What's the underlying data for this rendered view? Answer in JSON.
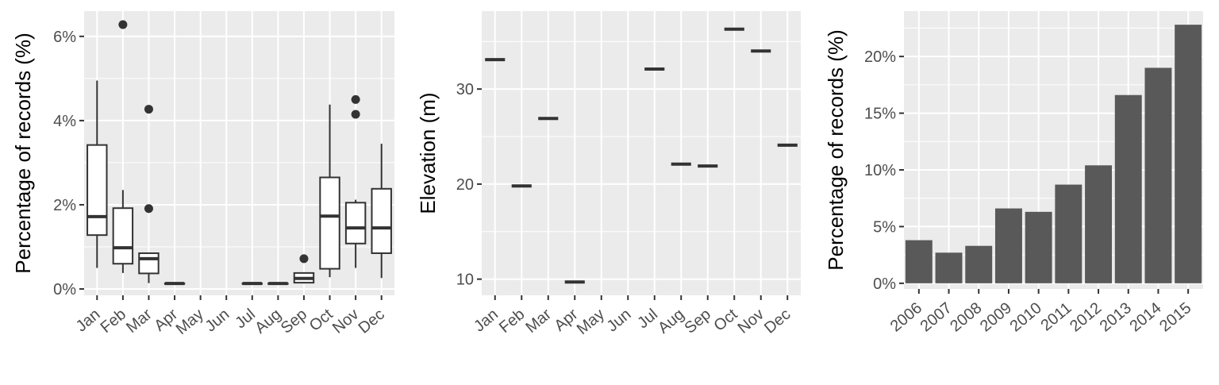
{
  "chart_data": [
    {
      "type": "boxplot",
      "xlabel": "",
      "ylabel": "Percentage of records (%)",
      "categories": [
        "Jan",
        "Feb",
        "Mar",
        "Apr",
        "May",
        "Jun",
        "Jul",
        "Aug",
        "Sep",
        "Oct",
        "Nov",
        "Dec"
      ],
      "y_ticks": [
        0,
        2,
        4,
        6
      ],
      "y_tick_labels": [
        "0%",
        "2%",
        "4%",
        "6%"
      ],
      "ylim": [
        -0.15,
        6.6
      ],
      "grid": true,
      "boxes": [
        {
          "category": "Jan",
          "min": 0.5,
          "q1": 1.28,
          "median": 1.72,
          "q3": 3.42,
          "max": 4.95,
          "outliers": []
        },
        {
          "category": "Feb",
          "min": 0.38,
          "q1": 0.6,
          "median": 0.98,
          "q3": 1.92,
          "max": 2.35,
          "outliers": [
            6.28
          ]
        },
        {
          "category": "Mar",
          "min": 0.14,
          "q1": 0.37,
          "median": 0.72,
          "q3": 0.85,
          "max": 0.85,
          "outliers": [
            4.27,
            1.91
          ]
        },
        {
          "category": "Apr",
          "min": 0.13,
          "q1": 0.13,
          "median": 0.13,
          "q3": 0.13,
          "max": 0.13,
          "outliers": []
        },
        {
          "category": "May",
          "min": null,
          "q1": null,
          "median": null,
          "q3": null,
          "max": null,
          "outliers": []
        },
        {
          "category": "Jun",
          "min": null,
          "q1": null,
          "median": null,
          "q3": null,
          "max": null,
          "outliers": []
        },
        {
          "category": "Jul",
          "min": 0.13,
          "q1": 0.13,
          "median": 0.13,
          "q3": 0.13,
          "max": 0.13,
          "outliers": []
        },
        {
          "category": "Aug",
          "min": 0.13,
          "q1": 0.13,
          "median": 0.13,
          "q3": 0.13,
          "max": 0.13,
          "outliers": []
        },
        {
          "category": "Sep",
          "min": 0.13,
          "q1": 0.15,
          "median": 0.25,
          "q3": 0.38,
          "max": 0.38,
          "outliers": [
            0.72
          ]
        },
        {
          "category": "Oct",
          "min": 0.28,
          "q1": 0.48,
          "median": 1.73,
          "q3": 2.65,
          "max": 4.38,
          "outliers": []
        },
        {
          "category": "Nov",
          "min": 0.5,
          "q1": 1.08,
          "median": 1.45,
          "q3": 2.05,
          "max": 2.12,
          "outliers": [
            4.5,
            4.15
          ]
        },
        {
          "category": "Dec",
          "min": 0.26,
          "q1": 0.85,
          "median": 1.45,
          "q3": 2.38,
          "max": 3.45,
          "outliers": []
        }
      ]
    },
    {
      "type": "boxplot",
      "xlabel": "",
      "ylabel": "Elevation (m)",
      "categories": [
        "Jan",
        "Feb",
        "Mar",
        "Apr",
        "May",
        "Jun",
        "Jul",
        "Aug",
        "Sep",
        "Oct",
        "Nov",
        "Dec"
      ],
      "y_ticks": [
        10,
        20,
        30
      ],
      "y_tick_labels": [
        "10",
        "20",
        "30"
      ],
      "ylim": [
        8.3,
        38.2
      ],
      "grid": true,
      "values": [
        33.1,
        19.8,
        26.9,
        9.7,
        null,
        null,
        32.1,
        22.1,
        21.9,
        36.3,
        34.0,
        24.1
      ]
    },
    {
      "type": "bar",
      "xlabel": "",
      "ylabel": "Percentage of records (%)",
      "categories": [
        "2006",
        "2007",
        "2008",
        "2009",
        "2010",
        "2011",
        "2012",
        "2013",
        "2014",
        "2015"
      ],
      "values": [
        3.8,
        2.7,
        3.3,
        6.6,
        6.3,
        8.7,
        10.4,
        16.6,
        19.0,
        22.8
      ],
      "y_ticks": [
        0,
        5,
        10,
        15,
        20
      ],
      "y_tick_labels": [
        "0%",
        "5%",
        "10%",
        "15%",
        "20%"
      ],
      "ylim": [
        -0.5,
        24.0
      ],
      "grid": true,
      "bar_color": "#595959"
    }
  ]
}
